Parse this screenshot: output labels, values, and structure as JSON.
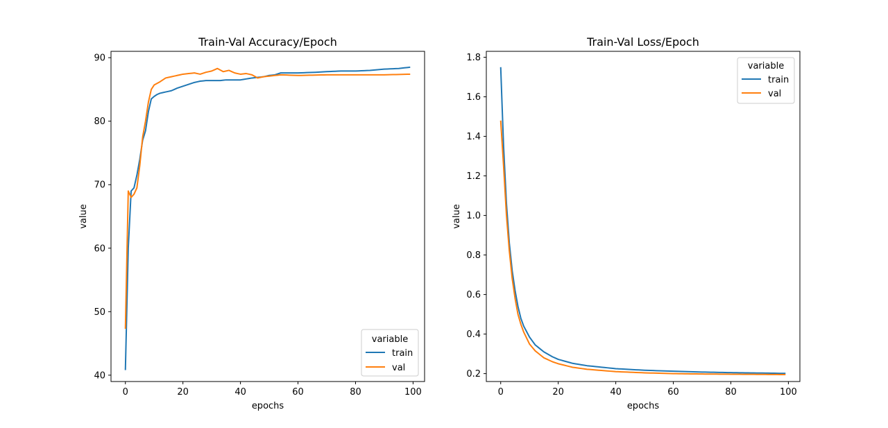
{
  "chart_data": [
    {
      "type": "line",
      "title": "Train-Val Accuracy/Epoch",
      "xlabel": "epochs",
      "ylabel": "value",
      "xlim": [
        -5,
        104
      ],
      "ylim": [
        39,
        91
      ],
      "xticks": [
        0,
        20,
        40,
        60,
        80,
        100
      ],
      "yticks": [
        40,
        50,
        60,
        70,
        80,
        90
      ],
      "grid": false,
      "legend": {
        "title": "variable",
        "placement": "lower right"
      },
      "series": [
        {
          "name": "train",
          "color": "#1f77b4",
          "keypoints": [
            [
              0,
              40.8
            ],
            [
              1,
              60
            ],
            [
              2,
              69
            ],
            [
              3,
              69.5
            ],
            [
              4,
              71.5
            ],
            [
              5,
              74
            ],
            [
              6,
              77
            ],
            [
              7,
              78.5
            ],
            [
              8,
              81.5
            ],
            [
              9,
              83.5
            ],
            [
              10,
              83.9
            ],
            [
              11,
              84.2
            ],
            [
              12,
              84.4
            ],
            [
              14,
              84.6
            ],
            [
              16,
              84.8
            ],
            [
              18,
              85.2
            ],
            [
              20,
              85.5
            ],
            [
              22,
              85.8
            ],
            [
              24,
              86.1
            ],
            [
              26,
              86.3
            ],
            [
              28,
              86.4
            ],
            [
              30,
              86.4
            ],
            [
              33,
              86.4
            ],
            [
              35,
              86.5
            ],
            [
              40,
              86.5
            ],
            [
              44,
              86.8
            ],
            [
              48,
              87
            ],
            [
              50,
              87.2
            ],
            [
              52,
              87.3
            ],
            [
              54,
              87.6
            ],
            [
              60,
              87.6
            ],
            [
              66,
              87.7
            ],
            [
              70,
              87.8
            ],
            [
              75,
              87.9
            ],
            [
              80,
              87.9
            ],
            [
              85,
              88
            ],
            [
              90,
              88.2
            ],
            [
              95,
              88.3
            ],
            [
              99,
              88.5
            ]
          ]
        },
        {
          "name": "val",
          "color": "#ff7f0e",
          "keypoints": [
            [
              0,
              47.3
            ],
            [
              1,
              69
            ],
            [
              2,
              68
            ],
            [
              3,
              68.5
            ],
            [
              4,
              69.5
            ],
            [
              5,
              73
            ],
            [
              6,
              77.5
            ],
            [
              7,
              80
            ],
            [
              8,
              83
            ],
            [
              9,
              85
            ],
            [
              10,
              85.7
            ],
            [
              12,
              86.2
            ],
            [
              14,
              86.8
            ],
            [
              16,
              87
            ],
            [
              18,
              87.2
            ],
            [
              20,
              87.4
            ],
            [
              22,
              87.5
            ],
            [
              24,
              87.6
            ],
            [
              26,
              87.4
            ],
            [
              28,
              87.7
            ],
            [
              30,
              87.9
            ],
            [
              32,
              88.3
            ],
            [
              34,
              87.8
            ],
            [
              36,
              88
            ],
            [
              38,
              87.6
            ],
            [
              40,
              87.4
            ],
            [
              42,
              87.5
            ],
            [
              44,
              87.3
            ],
            [
              46,
              86.8
            ],
            [
              48,
              87
            ],
            [
              50,
              87.1
            ],
            [
              54,
              87.3
            ],
            [
              60,
              87.2
            ],
            [
              70,
              87.3
            ],
            [
              80,
              87.3
            ],
            [
              90,
              87.3
            ],
            [
              99,
              87.4
            ]
          ]
        }
      ]
    },
    {
      "type": "line",
      "title": "Train-Val Loss/Epoch",
      "xlabel": "epochs",
      "ylabel": "value",
      "xlim": [
        -5,
        104
      ],
      "ylim": [
        0.16,
        1.83
      ],
      "xticks": [
        0,
        20,
        40,
        60,
        80,
        100
      ],
      "yticks": [
        0.2,
        0.4,
        0.6,
        0.8,
        1.0,
        1.2,
        1.4,
        1.6,
        1.8
      ],
      "ytick_labels": [
        "0.2",
        "0.4",
        "0.6",
        "0.8",
        "1.0",
        "1.2",
        "1.4",
        "1.6",
        "1.8"
      ],
      "grid": false,
      "legend": {
        "title": "variable",
        "placement": "upper right"
      },
      "series": [
        {
          "name": "train",
          "color": "#1f77b4",
          "keypoints": [
            [
              0,
              1.75
            ],
            [
              1,
              1.35
            ],
            [
              2,
              1.06
            ],
            [
              3,
              0.86
            ],
            [
              4,
              0.72
            ],
            [
              5,
              0.62
            ],
            [
              6,
              0.54
            ],
            [
              7,
              0.48
            ],
            [
              8,
              0.44
            ],
            [
              10,
              0.385
            ],
            [
              12,
              0.345
            ],
            [
              15,
              0.31
            ],
            [
              18,
              0.285
            ],
            [
              20,
              0.272
            ],
            [
              25,
              0.252
            ],
            [
              30,
              0.24
            ],
            [
              40,
              0.225
            ],
            [
              50,
              0.217
            ],
            [
              60,
              0.212
            ],
            [
              70,
              0.208
            ],
            [
              80,
              0.205
            ],
            [
              90,
              0.203
            ],
            [
              99,
              0.201
            ]
          ]
        },
        {
          "name": "val",
          "color": "#ff7f0e",
          "keypoints": [
            [
              0,
              1.48
            ],
            [
              1,
              1.25
            ],
            [
              2,
              1.0
            ],
            [
              3,
              0.82
            ],
            [
              4,
              0.68
            ],
            [
              5,
              0.58
            ],
            [
              6,
              0.5
            ],
            [
              7,
              0.45
            ],
            [
              8,
              0.41
            ],
            [
              10,
              0.35
            ],
            [
              12,
              0.315
            ],
            [
              15,
              0.28
            ],
            [
              18,
              0.26
            ],
            [
              20,
              0.25
            ],
            [
              25,
              0.232
            ],
            [
              30,
              0.222
            ],
            [
              40,
              0.21
            ],
            [
              50,
              0.204
            ],
            [
              60,
              0.2
            ],
            [
              70,
              0.198
            ],
            [
              80,
              0.197
            ],
            [
              90,
              0.196
            ],
            [
              99,
              0.195
            ]
          ]
        }
      ]
    }
  ]
}
